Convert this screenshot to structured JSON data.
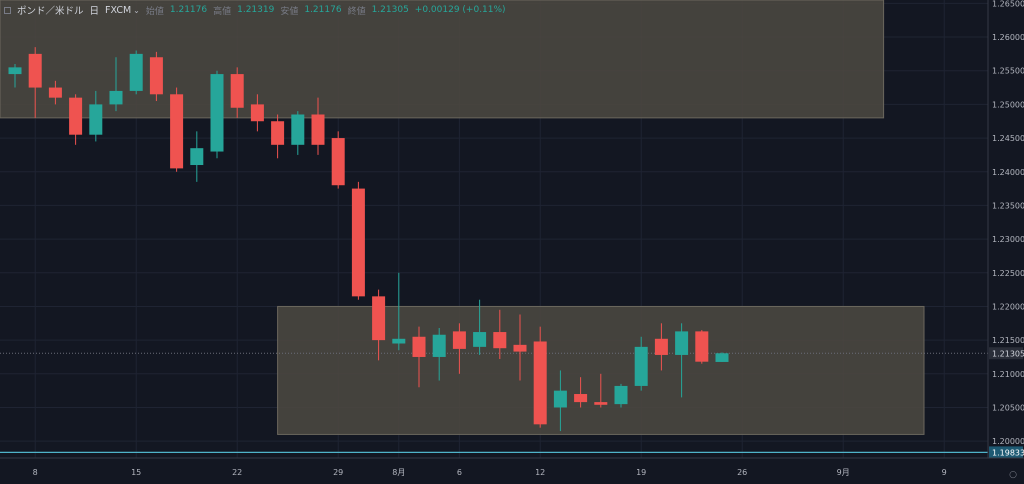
{
  "header": {
    "symbol": "ポンド／米ドル",
    "interval": "日",
    "source": "FXCM",
    "open_label": "始値",
    "open_value": "1.21176",
    "high_label": "高値",
    "high_value": "1.21319",
    "low_label": "安値",
    "low_value": "1.21176",
    "close_label": "終値",
    "close_value": "1.21305",
    "change": "+0.00129 (+0.11%)"
  },
  "colors": {
    "background": "#131722",
    "up": "#26a69a",
    "down": "#ef5350",
    "zone": "#4a4740",
    "grid": "#1f2433",
    "support_line": "#4fb3c9"
  },
  "chart_data": {
    "type": "candlestick",
    "y_axis": {
      "ticks": [
        1.2,
        1.205,
        1.21,
        1.215,
        1.22,
        1.225,
        1.23,
        1.235,
        1.24,
        1.245,
        1.25,
        1.255,
        1.26,
        1.265
      ],
      "tick_labels": [
        "1.20000",
        "1.20500",
        "1.21000",
        "1.21500",
        "1.22000",
        "1.22500",
        "1.23000",
        "1.23500",
        "1.24000",
        "1.24500",
        "1.25000",
        "1.25500",
        "1.26000",
        "1.26500"
      ],
      "ylim": [
        1.1975,
        1.2655
      ],
      "current_price_label": "1.21305",
      "current_price": 1.21305,
      "support_label": "1.19833",
      "support_price": 1.19833
    },
    "x_axis": {
      "ticks": [
        {
          "index": 1,
          "label": "8"
        },
        {
          "index": 6,
          "label": "15"
        },
        {
          "index": 11,
          "label": "22"
        },
        {
          "index": 16,
          "label": "29"
        },
        {
          "index": 19,
          "label": "8月"
        },
        {
          "index": 22,
          "label": "6"
        },
        {
          "index": 26,
          "label": "12"
        },
        {
          "index": 31,
          "label": "19"
        },
        {
          "index": 36,
          "label": "26"
        },
        {
          "index": 41,
          "label": "9月"
        },
        {
          "index": 46,
          "label": "9"
        }
      ]
    },
    "candles": [
      {
        "o": 1.2545,
        "h": 1.256,
        "l": 1.2525,
        "c": 1.2555
      },
      {
        "o": 1.2575,
        "h": 1.2585,
        "l": 1.248,
        "c": 1.2525
      },
      {
        "o": 1.2525,
        "h": 1.2535,
        "l": 1.25,
        "c": 1.251
      },
      {
        "o": 1.251,
        "h": 1.2515,
        "l": 1.244,
        "c": 1.2455
      },
      {
        "o": 1.2455,
        "h": 1.252,
        "l": 1.2445,
        "c": 1.25
      },
      {
        "o": 1.25,
        "h": 1.257,
        "l": 1.249,
        "c": 1.252
      },
      {
        "o": 1.252,
        "h": 1.258,
        "l": 1.2515,
        "c": 1.2575
      },
      {
        "o": 1.257,
        "h": 1.2578,
        "l": 1.2505,
        "c": 1.2515
      },
      {
        "o": 1.2515,
        "h": 1.2525,
        "l": 1.24,
        "c": 1.2405
      },
      {
        "o": 1.241,
        "h": 1.246,
        "l": 1.2385,
        "c": 1.2435
      },
      {
        "o": 1.243,
        "h": 1.255,
        "l": 1.242,
        "c": 1.2545
      },
      {
        "o": 1.2545,
        "h": 1.2555,
        "l": 1.248,
        "c": 1.2495
      },
      {
        "o": 1.25,
        "h": 1.2515,
        "l": 1.246,
        "c": 1.2475
      },
      {
        "o": 1.2475,
        "h": 1.2485,
        "l": 1.242,
        "c": 1.244
      },
      {
        "o": 1.244,
        "h": 1.249,
        "l": 1.2425,
        "c": 1.2485
      },
      {
        "o": 1.2485,
        "h": 1.251,
        "l": 1.2425,
        "c": 1.244
      },
      {
        "o": 1.245,
        "h": 1.246,
        "l": 1.2375,
        "c": 1.238
      },
      {
        "o": 1.2375,
        "h": 1.2385,
        "l": 1.221,
        "c": 1.2215
      },
      {
        "o": 1.2215,
        "h": 1.2225,
        "l": 1.212,
        "c": 1.215
      },
      {
        "o": 1.2145,
        "h": 1.225,
        "l": 1.2135,
        "c": 1.2152
      },
      {
        "o": 1.2155,
        "h": 1.217,
        "l": 1.208,
        "c": 1.2125
      },
      {
        "o": 1.2125,
        "h": 1.2168,
        "l": 1.209,
        "c": 1.2158
      },
      {
        "o": 1.2163,
        "h": 1.2175,
        "l": 1.21,
        "c": 1.2137
      },
      {
        "o": 1.214,
        "h": 1.221,
        "l": 1.2128,
        "c": 1.2162
      },
      {
        "o": 1.2162,
        "h": 1.2195,
        "l": 1.2122,
        "c": 1.2138
      },
      {
        "o": 1.2143,
        "h": 1.2188,
        "l": 1.209,
        "c": 1.2133
      },
      {
        "o": 1.2148,
        "h": 1.217,
        "l": 1.202,
        "c": 1.2025
      },
      {
        "o": 1.205,
        "h": 1.2105,
        "l": 1.2015,
        "c": 1.2075
      },
      {
        "o": 1.207,
        "h": 1.2095,
        "l": 1.205,
        "c": 1.2058
      },
      {
        "o": 1.2058,
        "h": 1.21,
        "l": 1.205,
        "c": 1.2054
      },
      {
        "o": 1.2055,
        "h": 1.2085,
        "l": 1.205,
        "c": 1.2082
      },
      {
        "o": 1.2082,
        "h": 1.2155,
        "l": 1.2075,
        "c": 1.214
      },
      {
        "o": 1.2152,
        "h": 1.2175,
        "l": 1.2105,
        "c": 1.2128
      },
      {
        "o": 1.2128,
        "h": 1.2175,
        "l": 1.2065,
        "c": 1.2163
      },
      {
        "o": 1.2163,
        "h": 1.2165,
        "l": 1.2115,
        "c": 1.2118
      },
      {
        "o": 1.21176,
        "h": 1.21319,
        "l": 1.21176,
        "c": 1.21305
      }
    ],
    "zones": [
      {
        "top": 1.2655,
        "bottom": 1.248,
        "start_index": -1,
        "end_index": 43
      },
      {
        "top": 1.22,
        "bottom": 1.201,
        "start_index": 13,
        "end_index": 45
      }
    ]
  }
}
